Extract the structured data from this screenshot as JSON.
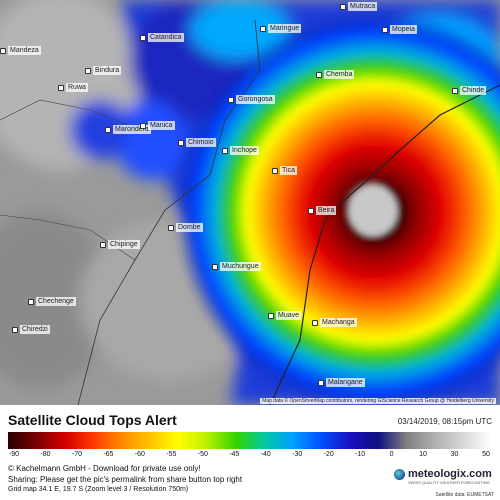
{
  "map": {
    "cities": [
      {
        "name": "Mutraca",
        "key": "mutraca"
      },
      {
        "name": "Catandica",
        "key": "catandica"
      },
      {
        "name": "Maringue",
        "key": "maringue"
      },
      {
        "name": "Mopeia",
        "key": "mopeia"
      },
      {
        "name": "Mandeza",
        "key": "mandeza"
      },
      {
        "name": "Bindura",
        "key": "bindura"
      },
      {
        "name": "Ruwa",
        "key": "ruwa"
      },
      {
        "name": "Chemba",
        "key": "chemba"
      },
      {
        "name": "Chinde",
        "key": "chinde"
      },
      {
        "name": "Gorongosa",
        "key": "gorongosa"
      },
      {
        "name": "Marondera",
        "key": "marondera"
      },
      {
        "name": "Manica",
        "key": "manica"
      },
      {
        "name": "Chimoio",
        "key": "chimoio"
      },
      {
        "name": "Inchope",
        "key": "inchope"
      },
      {
        "name": "Tica",
        "key": "tica"
      },
      {
        "name": "Beira",
        "key": "beira"
      },
      {
        "name": "Dombe",
        "key": "dombe"
      },
      {
        "name": "Chipinge",
        "key": "chipinge"
      },
      {
        "name": "Muchungue",
        "key": "muchungue"
      },
      {
        "name": "Chiredzi",
        "key": "chiredzi"
      },
      {
        "name": "Chechenge",
        "key": "chechenge"
      },
      {
        "name": "Muave",
        "key": "muave"
      },
      {
        "name": "Machanga",
        "key": "machanga"
      },
      {
        "name": "Malangane",
        "key": "malangane"
      }
    ],
    "attribution": "Map data © OpenStreetMap contributors, rendering GIScience Research Group @ Heidelberg University"
  },
  "footer": {
    "title": "Satellite Cloud Tops Alert",
    "timestamp": "03/14/2019, 08:15pm UTC",
    "scale_ticks": [
      "-90",
      "-80",
      "-70",
      "-65",
      "-60",
      "-55",
      "-50",
      "-45",
      "-40",
      "-30",
      "-20",
      "-10",
      "0",
      "10",
      "30",
      "50"
    ],
    "line1": "© Kachelmann GmbH - Download for private use only!",
    "line2": "Sharing: Please get the pic's permalink from share button top right",
    "line3": "Grid map 34.1 E, 19.7 S (Zoom level 3 / Resolution 750m)",
    "logo_brand": "meteologix.com",
    "logo_tagline": "SWISS QUALITY WEATHER FORECASTING",
    "source": "Satellite data: EUMETSAT"
  },
  "colors": {
    "scale": [
      "#2b0000",
      "#7a0000",
      "#d40000",
      "#ff3a00",
      "#ff8a00",
      "#ffc400",
      "#ffff00",
      "#b8f000",
      "#35d400",
      "#00c8a0",
      "#00a0ff",
      "#0050ff",
      "#1a10c0",
      "#101080",
      "#808080",
      "#b0b0b0",
      "#d8d8d8",
      "#ffffff"
    ]
  }
}
